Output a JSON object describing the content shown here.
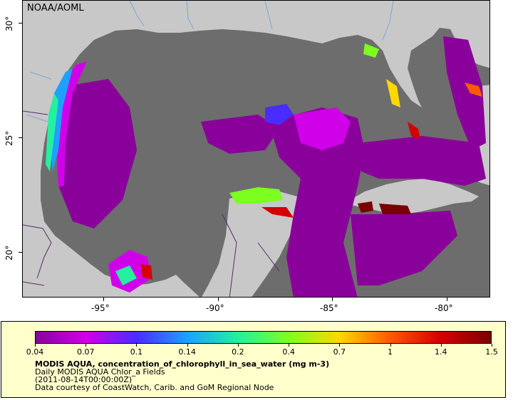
{
  "map": {
    "provider": "NOAA/AOML",
    "x_ticks": [
      "-95°",
      "-90°",
      "-85°",
      "-80°"
    ],
    "y_ticks": [
      "30°",
      "25°",
      "20°"
    ],
    "colors": {
      "ocean": "#6d6d6d",
      "land": "#c8c8c8",
      "rivers": "#7aa7d6",
      "borders": "#5a2a6a"
    }
  },
  "legend": {
    "colorbar_labels": [
      "0.04",
      "0.07",
      "0.1",
      "0.14",
      "0.2",
      "0.4",
      "0.7",
      "1",
      "1.4",
      "1.5"
    ],
    "colorbar_colors": [
      "#8a009a",
      "#d000e8",
      "#4a2cff",
      "#1ea0ff",
      "#24f0a0",
      "#7cff20",
      "#ffd800",
      "#ff5a00",
      "#d40000",
      "#7a0000"
    ],
    "title": "MODIS AQUA, concentration_of_chlorophyll_in_sea_water (mg m-3)",
    "subtitle": "Daily MODIS AQUA Chlor_a Fields",
    "date": "(2011-08-14T00:00:00Z)",
    "credit": "Data courtesy of CoastWatch, Carib. and GoM Regional Node"
  }
}
